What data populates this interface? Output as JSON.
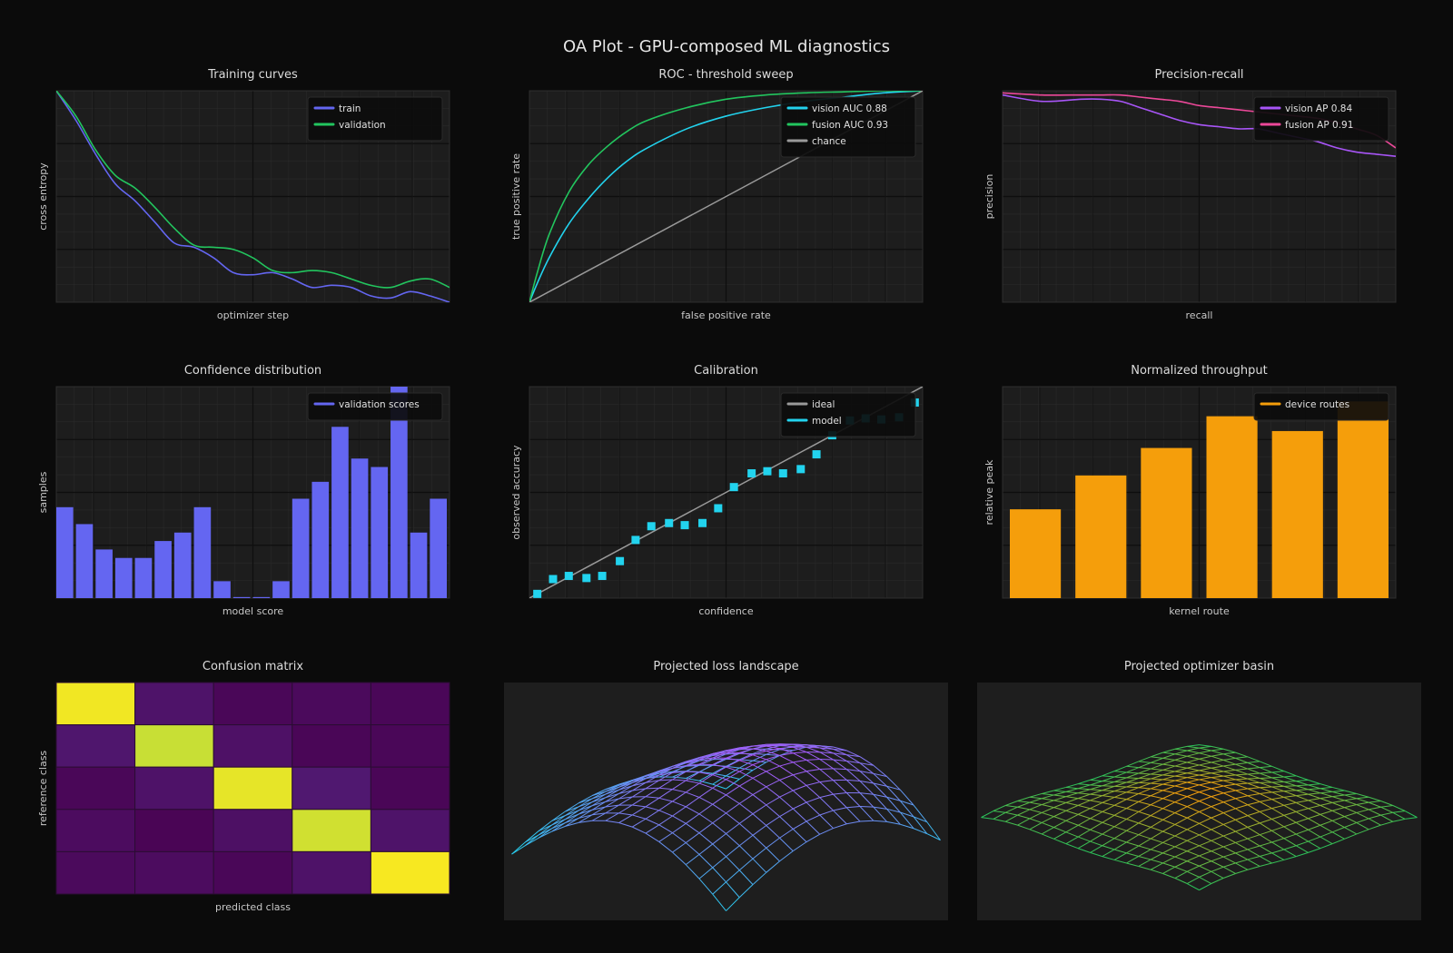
{
  "page": {
    "title": "OA Plot - GPU-composed ML diagnostics"
  },
  "colors": {
    "background": "#0b0b0b",
    "plot_bg": "#1d1d1d",
    "grid_minor": "#2a2a2a",
    "grid_major": "#0e0e0e",
    "legend_bg": "#0c0c0c",
    "train": "#6466f1",
    "validation": "#22c55e",
    "vision": "#22d3ee",
    "fusion": "#22c55e",
    "chance": "#9a9a9a",
    "pr_vision": "#a855f7",
    "pr_fusion": "#ec4899",
    "histogram": "#6466f1",
    "calib_model": "#22d3ee",
    "throughput": "#f59e0b",
    "surface_top": "#a855f7",
    "surface_bottom": "#22d3ee",
    "basin_top": "#f59e0b",
    "basin_bottom": "#22c55e"
  },
  "chart_data": [
    {
      "id": "training",
      "type": "line",
      "title": "Training curves",
      "xlabel": "optimizer step",
      "ylabel": "cross entropy",
      "xlim": [
        0,
        1
      ],
      "ylim": [
        0,
        1
      ],
      "grid": true,
      "legend_position": "top-right",
      "series": [
        {
          "name": "train",
          "color": "#6466f1",
          "x": [
            0,
            0.05,
            0.1,
            0.15,
            0.2,
            0.25,
            0.3,
            0.35,
            0.4,
            0.45,
            0.5,
            0.55,
            0.6,
            0.65,
            0.7,
            0.75,
            0.8,
            0.85,
            0.9,
            0.95,
            1.0
          ],
          "y": [
            1.0,
            0.86,
            0.7,
            0.56,
            0.48,
            0.38,
            0.28,
            0.26,
            0.21,
            0.14,
            0.13,
            0.14,
            0.11,
            0.07,
            0.08,
            0.07,
            0.03,
            0.02,
            0.05,
            0.03,
            0.0
          ]
        },
        {
          "name": "validation",
          "color": "#22c55e",
          "x": [
            0,
            0.05,
            0.1,
            0.15,
            0.2,
            0.25,
            0.3,
            0.35,
            0.4,
            0.45,
            0.5,
            0.55,
            0.6,
            0.65,
            0.7,
            0.75,
            0.8,
            0.85,
            0.9,
            0.95,
            1.0
          ],
          "y": [
            1.0,
            0.88,
            0.72,
            0.6,
            0.54,
            0.45,
            0.35,
            0.27,
            0.26,
            0.25,
            0.21,
            0.15,
            0.14,
            0.15,
            0.14,
            0.11,
            0.08,
            0.07,
            0.1,
            0.11,
            0.07
          ]
        }
      ]
    },
    {
      "id": "roc",
      "type": "line",
      "title": "ROC - threshold sweep",
      "xlabel": "false positive rate",
      "ylabel": "true positive rate",
      "xlim": [
        0,
        1
      ],
      "ylim": [
        0,
        1
      ],
      "grid": true,
      "legend_position": "top-right",
      "series": [
        {
          "name": "vision AUC 0.88",
          "color": "#22d3ee",
          "x": [
            0,
            0.02,
            0.05,
            0.1,
            0.15,
            0.2,
            0.25,
            0.3,
            0.4,
            0.5,
            0.6,
            0.7,
            0.8,
            0.9,
            1.0
          ],
          "y": [
            0,
            0.09,
            0.21,
            0.37,
            0.49,
            0.59,
            0.67,
            0.73,
            0.82,
            0.88,
            0.92,
            0.95,
            0.97,
            0.99,
            1.0
          ]
        },
        {
          "name": "fusion AUC 0.93",
          "color": "#22c55e",
          "x": [
            0,
            0.02,
            0.05,
            0.1,
            0.15,
            0.2,
            0.25,
            0.3,
            0.4,
            0.5,
            0.6,
            0.7,
            0.8,
            0.9,
            1.0
          ],
          "y": [
            0,
            0.14,
            0.32,
            0.52,
            0.65,
            0.74,
            0.81,
            0.86,
            0.92,
            0.96,
            0.98,
            0.99,
            0.995,
            1.0,
            1.0
          ]
        },
        {
          "name": "chance",
          "color": "#9a9a9a",
          "x": [
            0,
            1
          ],
          "y": [
            0,
            1
          ]
        }
      ]
    },
    {
      "id": "pr",
      "type": "line",
      "title": "Precision-recall",
      "xlabel": "recall",
      "ylabel": "precision",
      "xlim": [
        0,
        1
      ],
      "ylim": [
        0,
        1
      ],
      "grid": true,
      "legend_position": "top-right",
      "series": [
        {
          "name": "vision AP 0.84",
          "color": "#a855f7",
          "x": [
            0,
            0.1,
            0.2,
            0.25,
            0.3,
            0.35,
            0.4,
            0.45,
            0.5,
            0.55,
            0.6,
            0.65,
            0.7,
            0.75,
            0.8,
            0.85,
            0.9,
            0.95,
            1.0
          ],
          "y": [
            0.98,
            0.95,
            0.96,
            0.96,
            0.95,
            0.92,
            0.89,
            0.86,
            0.84,
            0.83,
            0.82,
            0.82,
            0.8,
            0.78,
            0.76,
            0.73,
            0.71,
            0.7,
            0.69
          ]
        },
        {
          "name": "fusion AP 0.91",
          "color": "#ec4899",
          "x": [
            0,
            0.1,
            0.2,
            0.25,
            0.3,
            0.35,
            0.4,
            0.45,
            0.5,
            0.55,
            0.6,
            0.65,
            0.7,
            0.75,
            0.8,
            0.85,
            0.9,
            0.95,
            1.0
          ],
          "y": [
            0.99,
            0.98,
            0.98,
            0.98,
            0.98,
            0.97,
            0.96,
            0.95,
            0.93,
            0.92,
            0.91,
            0.9,
            0.89,
            0.88,
            0.87,
            0.85,
            0.82,
            0.79,
            0.73
          ]
        }
      ]
    },
    {
      "id": "confidence",
      "type": "bar",
      "title": "Confidence distribution",
      "xlabel": "model score",
      "ylabel": "samples",
      "xlim": [
        0,
        1
      ],
      "ylim": [
        0,
        1
      ],
      "grid": true,
      "legend_position": "top-right",
      "series": [
        {
          "name": "validation scores",
          "color": "#6466f1",
          "values": [
            0.43,
            0.35,
            0.23,
            0.19,
            0.19,
            0.27,
            0.31,
            0.43,
            0.08,
            0.005,
            0.005,
            0.08,
            0.47,
            0.55,
            0.81,
            0.66,
            0.62,
            1.0,
            0.31,
            0.47
          ]
        }
      ]
    },
    {
      "id": "calibration",
      "type": "scatter",
      "title": "Calibration",
      "xlabel": "confidence",
      "ylabel": "observed accuracy",
      "xlim": [
        0,
        1
      ],
      "ylim": [
        0,
        1
      ],
      "grid": true,
      "legend_position": "top-right",
      "series": [
        {
          "name": "ideal",
          "color": "#9a9a9a",
          "kind": "line",
          "x": [
            0,
            1
          ],
          "y": [
            0,
            1
          ]
        },
        {
          "name": "model",
          "color": "#22d3ee",
          "kind": "scatter",
          "x": [
            0.02,
            0.06,
            0.1,
            0.145,
            0.185,
            0.23,
            0.27,
            0.31,
            0.355,
            0.395,
            0.44,
            0.48,
            0.52,
            0.565,
            0.605,
            0.645,
            0.69,
            0.73,
            0.77,
            0.815,
            0.855,
            0.895,
            0.94,
            0.98
          ],
          "y": [
            0.02,
            0.09,
            0.105,
            0.095,
            0.105,
            0.175,
            0.275,
            0.34,
            0.355,
            0.345,
            0.355,
            0.425,
            0.525,
            0.59,
            0.6,
            0.59,
            0.61,
            0.68,
            0.77,
            0.84,
            0.85,
            0.845,
            0.855,
            0.925
          ]
        }
      ]
    },
    {
      "id": "throughput",
      "type": "bar",
      "title": "Normalized throughput",
      "xlabel": "kernel route",
      "ylabel": "relative peak",
      "xlim": [
        0,
        1
      ],
      "ylim": [
        0,
        1
      ],
      "grid": true,
      "legend_position": "top-right",
      "series": [
        {
          "name": "device routes",
          "color": "#f59e0b",
          "values": [
            0.42,
            0.58,
            0.71,
            0.86,
            0.79,
            0.93
          ]
        }
      ]
    },
    {
      "id": "confusion",
      "type": "heatmap",
      "title": "Confusion matrix",
      "xlabel": "predicted class",
      "ylabel": "reference class",
      "values": [
        [
          0.98,
          0.16,
          0.06,
          0.08,
          0.06
        ],
        [
          0.18,
          0.83,
          0.14,
          0.05,
          0.06
        ],
        [
          0.06,
          0.15,
          0.94,
          0.2,
          0.05
        ],
        [
          0.1,
          0.04,
          0.13,
          0.86,
          0.16
        ],
        [
          0.08,
          0.1,
          0.06,
          0.15,
          1.0
        ]
      ]
    },
    {
      "id": "landscape",
      "type": "surface",
      "title": "Projected loss landscape",
      "grid_size": 16,
      "colors": [
        "#a855f7",
        "#22d3ee"
      ]
    },
    {
      "id": "basin",
      "type": "surface",
      "title": "Projected optimizer basin",
      "grid_size": 18,
      "colors": [
        "#f59e0b",
        "#22c55e"
      ]
    }
  ]
}
